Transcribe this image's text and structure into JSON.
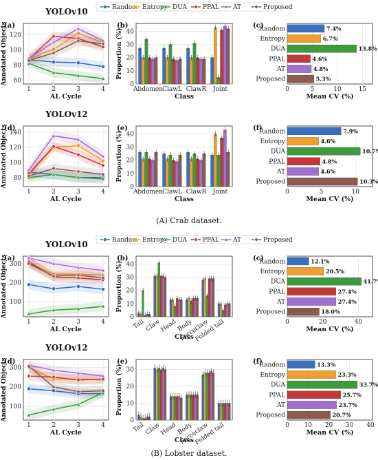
{
  "method_colors": {
    "Random": "#3a6fc0",
    "Entropy": "#f0a030",
    "DUA": "#3c9c3c",
    "PPAL": "#c43838",
    "AT": "#a070d0",
    "Proposed": "#8c5a50"
  },
  "captions": {
    "crab": "(A) Crab dataset.",
    "lobster": "(B) Lobster dataset."
  },
  "chart_data": [
    {
      "id": "crab_yolov10",
      "title": "YOLOv10",
      "legend": [
        "Random",
        "Entropy",
        "DUA",
        "PPAL",
        "AT",
        "Proposed"
      ],
      "line": {
        "type": "line",
        "panel_label": "(a)",
        "xlabel": "AL Cycle",
        "ylabel": "Annotated Objects",
        "x": [
          1,
          2,
          3,
          4
        ],
        "xticks": [
          "1",
          "2",
          "3",
          "4"
        ],
        "ylim": [
          55,
          135
        ],
        "yticks": [
          60,
          80,
          100,
          120
        ],
        "series": [
          {
            "name": "Random",
            "values": [
              87,
              84,
              83,
              78
            ]
          },
          {
            "name": "Entropy",
            "values": [
              88,
              101,
              122,
              110
            ]
          },
          {
            "name": "DUA",
            "values": [
              82,
              70,
              66,
              62
            ]
          },
          {
            "name": "PPAL",
            "values": [
              88,
              118,
              115,
              104
            ]
          },
          {
            "name": "AT",
            "values": [
              89,
              110,
              128,
              112
            ]
          },
          {
            "name": "Proposed",
            "values": [
              86,
              96,
              112,
              108
            ]
          }
        ]
      },
      "bar": {
        "type": "bar",
        "panel_label": "(b)",
        "xlabel": "Class",
        "ylabel": "Proportion (%)",
        "categories": [
          "Abdomen",
          "ClawL",
          "ClawR",
          "Joint"
        ],
        "ylim": [
          0,
          46
        ],
        "yticks": [
          0,
          10,
          20,
          30,
          40
        ],
        "series": [
          {
            "name": "Random",
            "values": [
              27,
              27,
              27,
              20
            ]
          },
          {
            "name": "Entropy",
            "values": [
              20,
              20,
              20,
              43
            ]
          },
          {
            "name": "DUA",
            "values": [
              34,
              30,
              31,
              5
            ]
          },
          {
            "name": "PPAL",
            "values": [
              20,
              19,
              20,
              41
            ]
          },
          {
            "name": "AT",
            "values": [
              19,
              18,
              19,
              44
            ]
          },
          {
            "name": "Proposed",
            "values": [
              20,
              19,
              19,
              42
            ]
          }
        ]
      },
      "hbar": {
        "type": "bar",
        "panel_label": "(c)",
        "xlabel": "Mean CV (%)",
        "categories": [
          "Random",
          "Entropy",
          "DUA",
          "PPAL",
          "AT",
          "Proposed"
        ],
        "values": [
          7.4,
          6.7,
          13.8,
          4.6,
          4.8,
          5.3
        ],
        "value_labels": [
          "7.4%",
          "6.7%",
          "13.8%",
          "4.6%",
          "4.8%",
          "5.3%"
        ],
        "xlim": [
          0,
          17
        ],
        "xticks": [
          0,
          5,
          10,
          15
        ]
      }
    },
    {
      "id": "crab_yolov12",
      "title": "YOLOv12",
      "line": {
        "type": "line",
        "panel_label": "(d)",
        "xlabel": "AL Cycle",
        "ylabel": "Annotated Objects",
        "x": [
          1,
          2,
          3,
          4
        ],
        "xticks": [
          "1",
          "2",
          "3",
          "4"
        ],
        "ylim": [
          68,
          148
        ],
        "yticks": [
          80,
          100,
          120,
          140
        ],
        "series": [
          {
            "name": "Random",
            "values": [
              87,
              84,
              80,
              80
            ]
          },
          {
            "name": "Entropy",
            "values": [
              84,
              120,
              122,
              102
            ]
          },
          {
            "name": "DUA",
            "values": [
              80,
              84,
              80,
              78
            ]
          },
          {
            "name": "PPAL",
            "values": [
              85,
              121,
              110,
              96
            ]
          },
          {
            "name": "AT",
            "values": [
              90,
              135,
              130,
              108
            ]
          },
          {
            "name": "Proposed",
            "values": [
              82,
              92,
              88,
              84
            ]
          }
        ]
      },
      "bar": {
        "type": "bar",
        "panel_label": "(e)",
        "xlabel": "Class",
        "ylabel": "Proportion (%)",
        "categories": [
          "Abdomen",
          "ClawL",
          "ClawR",
          "Joint"
        ],
        "ylim": [
          0,
          46
        ],
        "yticks": [
          0,
          10,
          20,
          30,
          40
        ],
        "series": [
          {
            "name": "Random",
            "values": [
              26,
              25,
              26,
              24
            ]
          },
          {
            "name": "Entropy",
            "values": [
              21,
              21,
              21,
              40
            ]
          },
          {
            "name": "DUA",
            "values": [
              26,
              24,
              25,
              24
            ]
          },
          {
            "name": "PPAL",
            "values": [
              21,
              20,
              21,
              37
            ]
          },
          {
            "name": "AT",
            "values": [
              20,
              19,
              20,
              43
            ]
          },
          {
            "name": "Proposed",
            "values": [
              26,
              24,
              25,
              26
            ]
          }
        ]
      },
      "hbar": {
        "type": "bar",
        "panel_label": "(f)",
        "xlabel": "Mean CV (%)",
        "categories": [
          "Random",
          "Entropy",
          "DUA",
          "PPAL",
          "AT",
          "Proposed"
        ],
        "values": [
          7.9,
          4.6,
          10.7,
          4.8,
          4.6,
          10.3
        ],
        "value_labels": [
          "7.9%",
          "4.6%",
          "10.7%",
          "4.8%",
          "4.6%",
          "10.3%"
        ],
        "xlim": [
          0,
          12.5
        ],
        "xticks": [
          0,
          5,
          10
        ]
      }
    },
    {
      "id": "lobster_yolov10",
      "title": "YOLOv10",
      "legend": [
        "Random",
        "Entropy",
        "DUA",
        "PPAL",
        "AT",
        "Proposed"
      ],
      "line": {
        "type": "line",
        "panel_label": "(a)",
        "xlabel": "AL Cycle",
        "ylabel": "Annotated Objects",
        "x": [
          1,
          2,
          3,
          4
        ],
        "xticks": [
          "1",
          "2",
          "3",
          "4"
        ],
        "ylim": [
          20,
          340
        ],
        "yticks": [
          100,
          200,
          300
        ],
        "series": [
          {
            "name": "Random",
            "values": [
              190,
              168,
              180,
              165
            ]
          },
          {
            "name": "Entropy",
            "values": [
              305,
              245,
              245,
              240
            ]
          },
          {
            "name": "DUA",
            "values": [
              35,
              55,
              62,
              75
            ]
          },
          {
            "name": "PPAL",
            "values": [
              310,
              230,
              225,
              215
            ]
          },
          {
            "name": "AT",
            "values": [
              330,
              300,
              280,
              265
            ]
          },
          {
            "name": "Proposed",
            "values": [
              300,
              235,
              240,
              225
            ]
          }
        ]
      },
      "bar": {
        "type": "bar",
        "panel_label": "(b)",
        "xlabel": "Class",
        "ylabel": "Proportion (%)",
        "categories": [
          "Tail",
          "Claw",
          "Head",
          "Body",
          "Forceclaw",
          "Folded tail"
        ],
        "ylim": [
          0,
          46
        ],
        "yticks": [
          0,
          10,
          20,
          30,
          40
        ],
        "series": [
          {
            "name": "Random",
            "values": [
              3,
              31,
              13,
              13,
              28,
              10
            ]
          },
          {
            "name": "Entropy",
            "values": [
              2,
              31,
              13,
              14,
              29,
              10
            ]
          },
          {
            "name": "DUA",
            "values": [
              20,
              41,
              8,
              12,
              16,
              5
            ]
          },
          {
            "name": "PPAL",
            "values": [
              1,
              31,
              14,
              14,
              29,
              9
            ]
          },
          {
            "name": "AT",
            "values": [
              2,
              31,
              13,
              14,
              29,
              10
            ]
          },
          {
            "name": "Proposed",
            "values": [
              2,
              30,
              13,
              14,
              29,
              10
            ]
          }
        ]
      },
      "hbar": {
        "type": "bar",
        "panel_label": "(c)",
        "xlabel": "Mean CV (%)",
        "categories": [
          "Random",
          "Entropy",
          "DUA",
          "PPAL",
          "AT",
          "Proposed"
        ],
        "values": [
          12.1,
          20.5,
          41.7,
          27.4,
          27.4,
          18.0
        ],
        "value_labels": [
          "12.1%",
          "20.5%",
          "41.7%",
          "27.4%",
          "27.4%",
          "18.0%"
        ],
        "xlim": [
          0,
          48
        ],
        "xticks": [
          0,
          20,
          40
        ]
      }
    },
    {
      "id": "lobster_yolov12",
      "title": "YOLOv12",
      "line": {
        "type": "line",
        "panel_label": "(d)",
        "xlabel": "AL Cycle",
        "ylabel": "Annotated Objects",
        "x": [
          1,
          2,
          3,
          4
        ],
        "xticks": [
          "1",
          "2",
          "3",
          "4"
        ],
        "ylim": [
          30,
          340
        ],
        "yticks": [
          100,
          200,
          300
        ],
        "series": [
          {
            "name": "Random",
            "values": [
              190,
              180,
              165,
              165
            ]
          },
          {
            "name": "Entropy",
            "values": [
              300,
              240,
              240,
              235
            ]
          },
          {
            "name": "DUA",
            "values": [
              55,
              85,
              110,
              170
            ]
          },
          {
            "name": "PPAL",
            "values": [
              255,
              250,
              235,
              240
            ]
          },
          {
            "name": "AT",
            "values": [
              310,
              285,
              270,
              255
            ]
          },
          {
            "name": "Proposed",
            "values": [
              305,
              200,
              175,
              180
            ]
          }
        ]
      },
      "bar": {
        "type": "bar",
        "panel_label": "(e)",
        "xlabel": "Class",
        "ylabel": "Proportion (%)",
        "categories": [
          "Tail",
          "Claw",
          "Head",
          "Body",
          "Forceclaw",
          "Folded tail"
        ],
        "ylim": [
          0,
          36
        ],
        "yticks": [
          0,
          10,
          20,
          30
        ],
        "series": [
          {
            "name": "Random",
            "values": [
              3,
              31,
              14,
              15,
              27,
              10
            ]
          },
          {
            "name": "Entropy",
            "values": [
              2,
              30,
              14,
              15,
              28,
              10
            ]
          },
          {
            "name": "DUA",
            "values": [
              1,
              31,
              14,
              15,
              28,
              10
            ]
          },
          {
            "name": "PPAL",
            "values": [
              1,
              30,
              14,
              15,
              28,
              10
            ]
          },
          {
            "name": "AT",
            "values": [
              2,
              31,
              14,
              15,
              29,
              10
            ]
          },
          {
            "name": "Proposed",
            "values": [
              2,
              30,
              13,
              15,
              28,
              10
            ]
          }
        ]
      },
      "hbar": {
        "type": "bar",
        "panel_label": "(f)",
        "xlabel": "Mean CV (%)",
        "categories": [
          "Random",
          "Entropy",
          "DUA",
          "PPAL",
          "AT",
          "Proposed"
        ],
        "values": [
          13.3,
          23.3,
          33.7,
          25.7,
          23.7,
          20.7
        ],
        "value_labels": [
          "13.3%",
          "23.3%",
          "33.7%",
          "25.7%",
          "23.7%",
          "20.7%"
        ],
        "xlim": [
          0,
          41
        ],
        "xticks": [
          0,
          10,
          20,
          30,
          40
        ]
      }
    }
  ]
}
